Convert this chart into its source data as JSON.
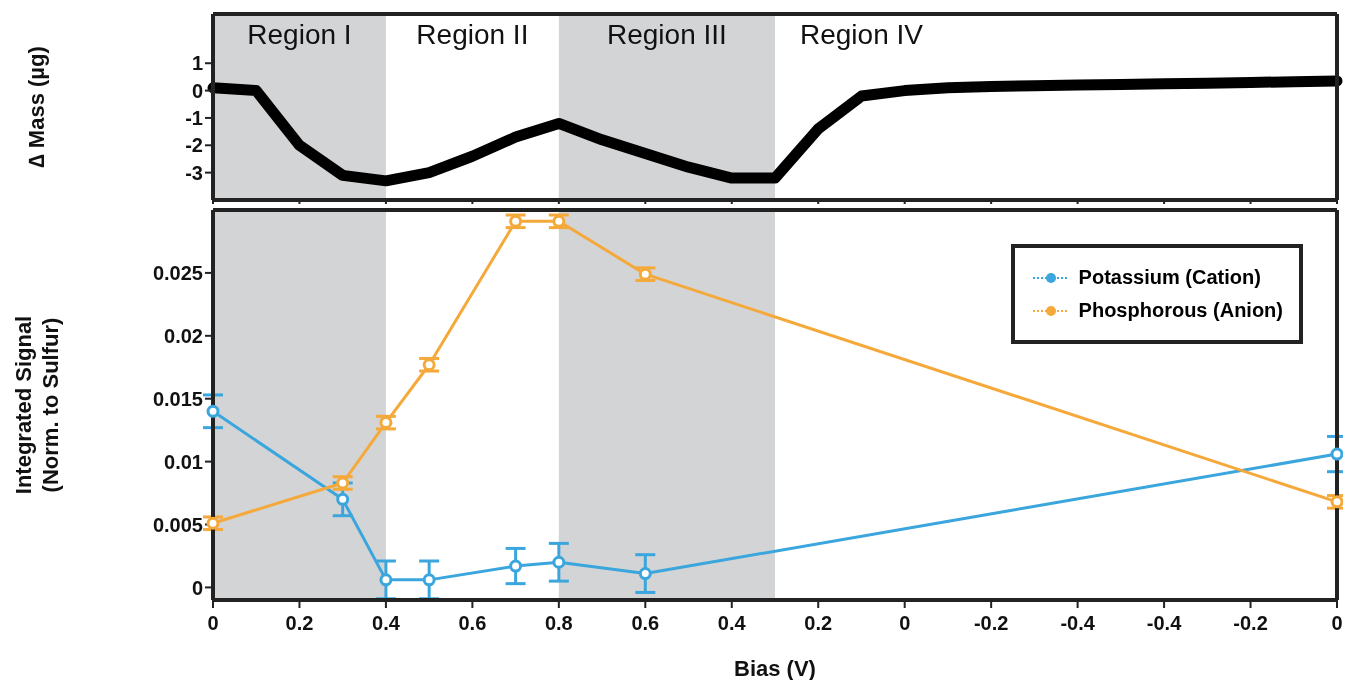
{
  "chart_data": [
    {
      "type": "line",
      "ylabel": "∆ Mass (µg)",
      "ylim": [
        -4,
        2.8
      ],
      "yticks": [
        1,
        0,
        -1,
        -2,
        -3
      ],
      "tick_labels": "y",
      "marker": "none",
      "line_style": "solid",
      "categories": [
        "0",
        null,
        "0.2",
        null,
        "0.4",
        null,
        "0.6",
        null,
        "0.8",
        null,
        "0.6",
        null,
        "0.4",
        null,
        "0.2",
        null,
        "0",
        null,
        "-0.2",
        null,
        "-0.4",
        null,
        "-0.4",
        null,
        "-0.2",
        null,
        "0"
      ],
      "bands": [
        {
          "axis": "x",
          "from": "0",
          "to": "0.4",
          "label": "Region I",
          "color": "#d3d4d6"
        }
      ],
      "annotations": [
        "Region II",
        "Region III",
        "Region IV"
      ],
      "series": [
        {
          "color": "#000000",
          "values": [
            0.1,
            0,
            -2,
            -3.1,
            -3.3,
            -3,
            -2.4,
            -1.7,
            -1.2,
            -1.8,
            -2.3,
            -2.8,
            -3.2,
            -3.2,
            -1.4,
            -0.2,
            0,
            0.1,
            0.15,
            0.18,
            0.2,
            0.22,
            0.25,
            0.27,
            0.3,
            0.32,
            0.35
          ]
        }
      ]
    },
    {
      "type": "line",
      "xlabel": "Bias (V)",
      "ylabel": "Integrated Signal\n(Norm. to Sulfur)",
      "ylim": [
        -0.001,
        0.03
      ],
      "yticks": [
        0,
        0.005,
        0.01,
        0.015,
        0.02,
        0.025
      ],
      "legend": "top right",
      "marker": "circle",
      "line_style": "solid",
      "categories": [
        "0",
        null,
        "0.2",
        null,
        "0.4",
        null,
        "0.6",
        null,
        "0.8",
        null,
        "0.6",
        null,
        "0.4",
        null,
        "0.2",
        null,
        "0",
        null,
        "-0.2",
        null,
        "-0.4",
        null,
        "-0.4",
        null,
        "-0.2",
        null,
        "0"
      ],
      "bands": [
        {
          "axis": "x",
          "from": "0",
          "to": "0.4",
          "color": "#d3d4d6"
        }
      ],
      "series": [
        {
          "name": "Potassium (Cation)",
          "color": "#3aa6dd",
          "values": [
            0.014,
            null,
            null,
            0.007,
            0.0006,
            0.0006,
            null,
            0.0017,
            0.002,
            null,
            0.0011,
            null,
            null,
            null,
            null,
            null,
            null,
            null,
            null,
            null,
            null,
            null,
            null,
            null,
            null,
            null,
            0.0106
          ],
          "errors": [
            0.0013,
            null,
            null,
            0.0013,
            0.0015,
            0.0015,
            null,
            0.0014,
            0.0015,
            null,
            0.0015,
            null,
            null,
            null,
            null,
            null,
            null,
            null,
            null,
            null,
            null,
            null,
            null,
            null,
            null,
            null,
            0.0014
          ]
        },
        {
          "name": "Phosphorous (Anion)",
          "color": "#f5a93a",
          "values": [
            0.0051,
            null,
            null,
            0.0083,
            0.0131,
            0.0177,
            null,
            0.0291,
            0.0291,
            null,
            0.0249,
            null,
            null,
            null,
            null,
            null,
            null,
            null,
            null,
            null,
            null,
            null,
            null,
            null,
            null,
            null,
            0.0068
          ],
          "errors": [
            0.0005,
            null,
            null,
            0.0005,
            0.0005,
            0.0005,
            null,
            0.0005,
            0.0005,
            null,
            0.0005,
            null,
            null,
            null,
            null,
            null,
            null,
            null,
            null,
            null,
            null,
            null,
            null,
            null,
            null,
            null,
            0.0005
          ]
        }
      ]
    }
  ]
}
